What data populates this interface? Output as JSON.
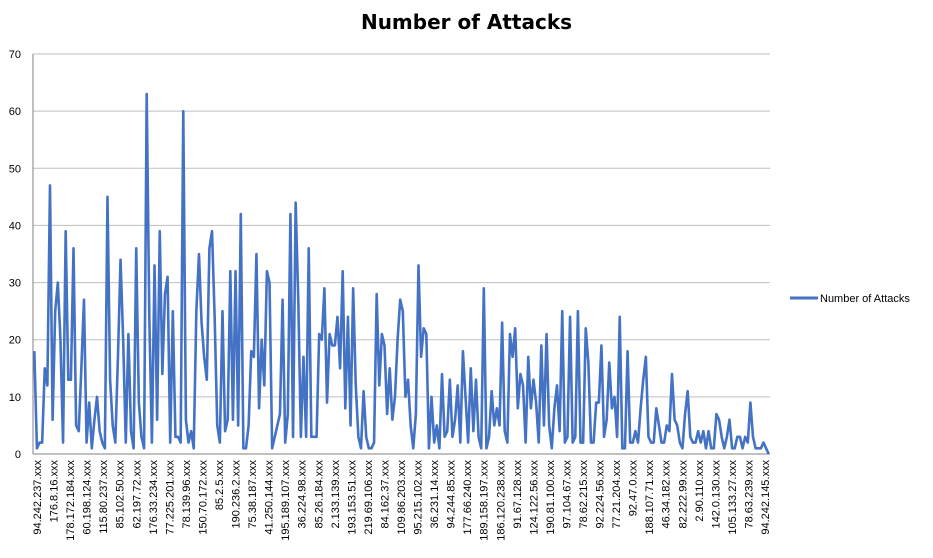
{
  "chart_data": {
    "type": "line",
    "title": "Number of Attacks",
    "xlabel": "",
    "ylabel": "",
    "ylim": [
      0,
      70
    ],
    "yticks": [
      0,
      10,
      20,
      30,
      40,
      50,
      60,
      70
    ],
    "grid": "horizontal",
    "legend_position": "right",
    "series_color": "#4472C4",
    "x_tick_labels": [
      "94.242.237.xxx",
      "176.8.16.xxx",
      "178.172.184.xxx",
      "60.198.124.xxx",
      "115.80.237.xxx",
      "85.102.50.xxx",
      "62.197.72.xxx",
      "176.33.234.xxx",
      "77.225.201.xxx",
      "78.139.96.xxx",
      "150.70.172.xxx",
      "85.2.5.xxx",
      "190.236.2.xxx",
      "75.38.187.xxx",
      "41.250.144.xxx",
      "195.189.107.xxx",
      "36.224.98.xxx",
      "85.26.184.xxx",
      "2.133.139.xxx",
      "193.153.51.xxx",
      "219.69.106.xxx",
      "84.162.37.xxx",
      "109.86.203.xxx",
      "95.215.102.xxx",
      "36.231.14.xxx",
      "94.244.85.xxx",
      "177.66.240.xxx",
      "189.158.197.xxx",
      "186.120.238.xxx",
      "91.67.128.xxx",
      "124.122.56.xxx",
      "190.81.100.xxx",
      "97.104.67.xxx",
      "78.62.215.xxx",
      "92.224.56.xxx",
      "77.21.204.xxx",
      "92.47.0.xxx",
      "188.107.71.xxx",
      "46.34.182.xxx",
      "82.222.99.xxx",
      "2.90.110.xxx",
      "142.0.130.xxx",
      "105.133.27.xxx",
      "78.63.239.xxx",
      "94.242.145.xxx"
    ],
    "series": [
      {
        "name": "Number of Attacks",
        "values": [
          18,
          1,
          2,
          2,
          15,
          12,
          47,
          6,
          25,
          30,
          20,
          2,
          39,
          13,
          13,
          36,
          5,
          4,
          15,
          27,
          2,
          9,
          1,
          6,
          10,
          4,
          2,
          1,
          45,
          13,
          5,
          2,
          17,
          34,
          20,
          2,
          21,
          4,
          1,
          36,
          9,
          3,
          1,
          63,
          24,
          2,
          33,
          6,
          39,
          14,
          28,
          31,
          2,
          25,
          3,
          3,
          2,
          60,
          6,
          2,
          4,
          1,
          25,
          35,
          23,
          17,
          13,
          36,
          39,
          24,
          5,
          2,
          25,
          4,
          6,
          32,
          6,
          32,
          5,
          42,
          1,
          1,
          5,
          18,
          17,
          35,
          8,
          20,
          12,
          32,
          30,
          1,
          3,
          5,
          7,
          27,
          2,
          7,
          42,
          3,
          44,
          27,
          3,
          17,
          3,
          36,
          3,
          3,
          3,
          21,
          20,
          29,
          9,
          21,
          19,
          19,
          24,
          15,
          32,
          8,
          24,
          5,
          29,
          12,
          3,
          1,
          11,
          3,
          1,
          1,
          2,
          28,
          12,
          21,
          19,
          7,
          15,
          6,
          10,
          20,
          27,
          25,
          10,
          13,
          5,
          1,
          7,
          33,
          17,
          22,
          21,
          1,
          10,
          2,
          5,
          1,
          14,
          3,
          4,
          13,
          3,
          6,
          12,
          2,
          18,
          10,
          2,
          15,
          4,
          13,
          3,
          1,
          29,
          1,
          3,
          11,
          5,
          8,
          5,
          23,
          4,
          2,
          21,
          17,
          22,
          8,
          14,
          12,
          2,
          17,
          8,
          13,
          9,
          2,
          19,
          5,
          21,
          5,
          1,
          8,
          12,
          4,
          25,
          2,
          3,
          24,
          2,
          3,
          25,
          2,
          2,
          22,
          16,
          2,
          2,
          9,
          9,
          19,
          3,
          6,
          16,
          8,
          10,
          3,
          24,
          1,
          1,
          18,
          2,
          2,
          4,
          2,
          8,
          13,
          17,
          3,
          2,
          2,
          8,
          5,
          2,
          2,
          5,
          4,
          14,
          6,
          5,
          2,
          1,
          7,
          11,
          3,
          2,
          2,
          4,
          2,
          4,
          1,
          4,
          1,
          1,
          7,
          6,
          3,
          1,
          3,
          6,
          1,
          1,
          3,
          3,
          1,
          3,
          2,
          9,
          3,
          1,
          1,
          1,
          2,
          1,
          0
        ]
      }
    ]
  }
}
